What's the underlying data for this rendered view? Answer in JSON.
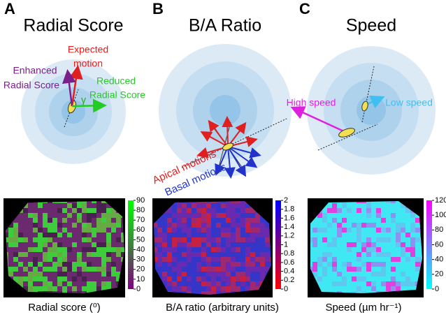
{
  "panels": [
    {
      "letter": "A",
      "title": "Radial Score",
      "annotations": {
        "expected": [
          "Expected",
          "motion"
        ],
        "enhanced": [
          "Enhanced",
          "Radial Score"
        ],
        "reduced": [
          "Reduced",
          "Radial Score"
        ],
        "angle": "γ"
      },
      "colorbar_ticks": [
        0,
        10,
        20,
        30,
        40,
        50,
        60,
        70,
        80,
        90
      ],
      "x_label": "Radial score (⁰)"
    },
    {
      "letter": "B",
      "title": "B/A Ratio",
      "annotations": {
        "apical": "Apical motions",
        "basal": "Basal motions"
      },
      "colorbar_ticks": [
        0,
        0.2,
        0.4,
        0.6,
        0.8,
        1,
        1.2,
        1.4,
        1.6,
        1.8,
        2
      ],
      "x_label": "B/A ratio (arbitrary units)"
    },
    {
      "letter": "C",
      "title": "Speed",
      "annotations": {
        "high": "High speed",
        "low": "Low speed"
      },
      "colorbar_ticks": [
        0,
        20,
        40,
        60,
        80,
        100,
        120
      ],
      "x_label": "Speed (µm hr⁻¹)"
    }
  ]
}
